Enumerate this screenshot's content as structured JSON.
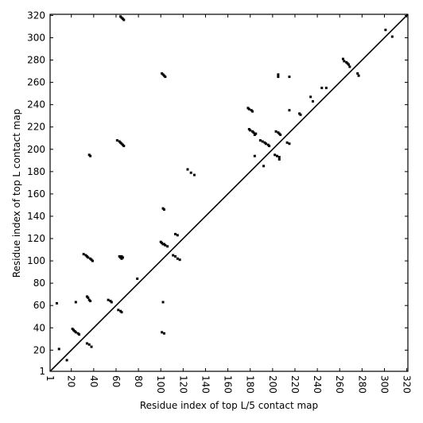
{
  "chart_data": {
    "type": "scatter",
    "xlabel": "Residue index of top L/5 contact map",
    "ylabel": "Residue index of top L contact map",
    "xlim": [
      1,
      321
    ],
    "ylim": [
      1,
      321
    ],
    "xticks": [
      1,
      20,
      40,
      60,
      80,
      100,
      120,
      140,
      160,
      180,
      200,
      220,
      240,
      260,
      280,
      300,
      320
    ],
    "yticks": [
      1,
      20,
      40,
      60,
      80,
      100,
      120,
      140,
      160,
      180,
      200,
      220,
      240,
      260,
      280,
      300,
      320
    ],
    "color": "#000000",
    "x": [
      64,
      65,
      66,
      67,
      101,
      102,
      103,
      104,
      36,
      37,
      61,
      63,
      64,
      65,
      66,
      67,
      124,
      127,
      130,
      102,
      103,
      31,
      33,
      34,
      35,
      37,
      38,
      39,
      63,
      64,
      65,
      66,
      65,
      100,
      101,
      102,
      103,
      104,
      106,
      113,
      115,
      79,
      24,
      34,
      35,
      36,
      37,
      53,
      55,
      56,
      7,
      21,
      22,
      23,
      24,
      26,
      27,
      9,
      16,
      34,
      36,
      38,
      62,
      64,
      65,
      102,
      101,
      103,
      111,
      113,
      115,
      117,
      178,
      179,
      181,
      182,
      179,
      180,
      182,
      183,
      185,
      184,
      184,
      189,
      191,
      193,
      194,
      196,
      197,
      192,
      203,
      205,
      206,
      207,
      202,
      204,
      206,
      206,
      205,
      205,
      215,
      215,
      213,
      215,
      224,
      225,
      234,
      236,
      244,
      248,
      263,
      264,
      266,
      267,
      268,
      269,
      276,
      277,
      301,
      307
    ],
    "y": [
      319,
      318,
      317,
      316,
      268,
      267,
      266,
      265,
      195,
      194,
      208,
      207,
      206,
      205,
      204,
      203,
      182,
      179,
      177,
      147,
      146,
      106,
      105,
      104,
      103,
      102,
      101,
      100,
      104,
      103,
      102,
      103,
      104,
      117,
      116,
      115,
      115,
      114,
      113,
      124,
      123,
      84,
      63,
      68,
      67,
      65,
      64,
      65,
      64,
      63,
      62,
      39,
      38,
      37,
      36,
      35,
      34,
      21,
      11,
      26,
      25,
      23,
      56,
      55,
      54,
      63,
      36,
      35,
      105,
      104,
      102,
      101,
      237,
      236,
      235,
      234,
      218,
      217,
      216,
      215,
      214,
      213,
      194,
      208,
      207,
      206,
      205,
      204,
      203,
      185,
      216,
      215,
      214,
      213,
      195,
      194,
      193,
      191,
      267,
      265,
      265,
      235,
      206,
      205,
      232,
      231,
      247,
      243,
      255,
      255,
      281,
      279,
      278,
      277,
      276,
      274,
      268,
      266,
      307,
      301
    ]
  }
}
